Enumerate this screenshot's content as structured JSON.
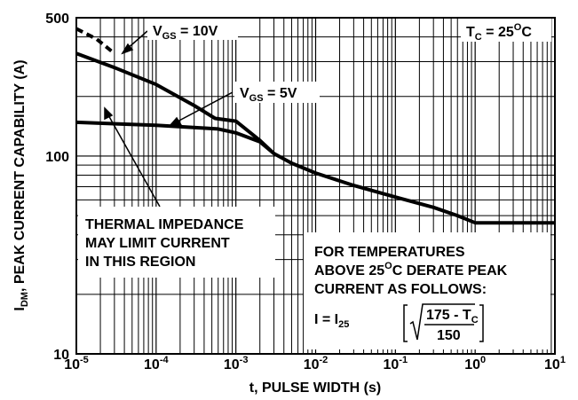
{
  "chart_data": {
    "type": "line",
    "title": "",
    "xlabel": "t, PULSE WIDTH (s)",
    "ylabel": {
      "pre": "I",
      "sub": "DM",
      "post": ", PEAK CURRENT CAPABILITY (A)"
    },
    "x_scale": "log",
    "y_scale": "log",
    "xlim": [
      1e-05,
      10
    ],
    "ylim": [
      10,
      500
    ],
    "x_ticks": [
      {
        "value": 1e-05,
        "base": "10",
        "exp": "-5"
      },
      {
        "value": 0.0001,
        "base": "10",
        "exp": "-4"
      },
      {
        "value": 0.001,
        "base": "10",
        "exp": "-3"
      },
      {
        "value": 0.01,
        "base": "10",
        "exp": "-2"
      },
      {
        "value": 0.1,
        "base": "10",
        "exp": "-1"
      },
      {
        "value": 1,
        "base": "10",
        "exp": "0"
      },
      {
        "value": 10,
        "base": "10",
        "exp": "1"
      }
    ],
    "y_ticks": [
      {
        "value": 10,
        "label": "10"
      },
      {
        "value": 100,
        "label": "100"
      },
      {
        "value": 500,
        "label": "500"
      }
    ],
    "grid": true,
    "series": [
      {
        "name": "VGS = 10V",
        "style": "solid",
        "x": [
          1e-05,
          3e-05,
          0.0001,
          0.0003,
          0.00055,
          0.001,
          0.002,
          0.003,
          0.005,
          0.01,
          0.03,
          0.1,
          0.3,
          0.6,
          1,
          10
        ],
        "y": [
          330,
          280,
          230,
          180,
          155,
          150,
          120,
          103,
          92,
          82,
          71,
          62,
          55,
          50,
          46,
          46
        ]
      },
      {
        "name": "VGS = 10V (dashed)",
        "style": "dashed",
        "x": [
          1e-05,
          1.8e-05,
          3e-05
        ],
        "y": [
          440,
          390,
          330
        ]
      },
      {
        "name": "VGS = 5V",
        "style": "solid",
        "x": [
          1e-05,
          0.0001,
          0.0006,
          0.001,
          0.002,
          0.003
        ],
        "y": [
          148,
          143,
          137,
          131,
          118,
          103
        ]
      }
    ],
    "annotations": {
      "vgs10": {
        "pre": "V",
        "sub": "GS",
        "post": " = 10V"
      },
      "vgs5": {
        "pre": "V",
        "sub": "GS",
        "post": " = 5V"
      },
      "tc": {
        "pre": "T",
        "sub": "C",
        "mid": " = 25",
        "sup": "O",
        "post": "C"
      },
      "thermal": [
        "THERMAL IMPEDANCE",
        "MAY LIMIT CURRENT",
        "IN THIS REGION"
      ],
      "derate": {
        "line1": "FOR TEMPERATURES",
        "line2_pre": "ABOVE 25",
        "line2_sup": "O",
        "line2_post": "C DERATE PEAK",
        "line3": "CURRENT AS FOLLOWS:",
        "formula_pre": "I = I",
        "formula_sub": "25",
        "numerator": "175 - T",
        "numerator_sub": "C",
        "denominator": "150"
      }
    }
  }
}
